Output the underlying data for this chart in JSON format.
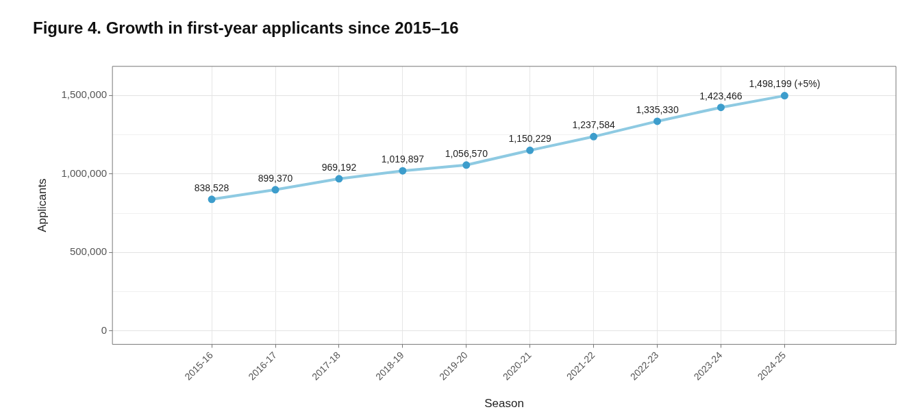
{
  "chart_data": {
    "type": "line",
    "title": "Figure 4. Growth in first-year applicants since 2015–16",
    "xlabel": "Season",
    "ylabel": "Applicants",
    "categories": [
      "2015-16",
      "2016-17",
      "2017-18",
      "2018-19",
      "2019-20",
      "2020-21",
      "2021-22",
      "2022-23",
      "2023-24",
      "2024-25"
    ],
    "series": [
      {
        "color": "#8ecae2",
        "values": [
          838528,
          899370,
          969192,
          1019897,
          1056570,
          1150229,
          1237584,
          1335330,
          1423466,
          1498199
        ],
        "value_labels": [
          "838,528",
          "899,370",
          "969,192",
          "1,019,897",
          "1,056,570",
          "1,150,229",
          "1,237,584",
          "1,335,330",
          "1,423,466",
          "1,498,199 (+5%)"
        ]
      }
    ],
    "ylim": [
      -85000,
      1685000
    ],
    "yticks": [
      0,
      {
        "value": 250000,
        "label": null
      },
      {
        "value": 500000,
        "label": "500,000"
      },
      {
        "value": 750000,
        "label": null
      },
      {
        "value": 1000000,
        "label": "1,000,000"
      },
      {
        "value": 1250000,
        "label": null
      },
      {
        "value": 1500000,
        "label": "1,500,000"
      }
    ],
    "grid": true,
    "marker": "circle",
    "line_style": "solid",
    "legend": false
  }
}
